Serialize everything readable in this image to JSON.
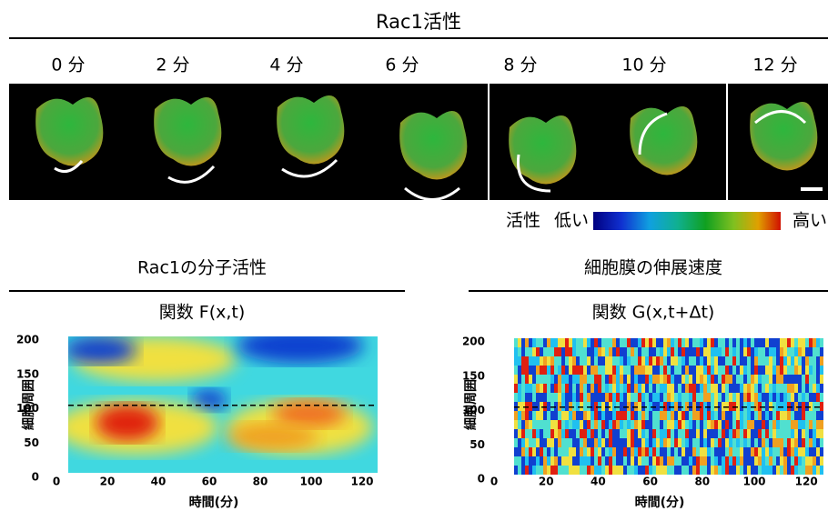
{
  "header": {
    "title": "Rac1活性",
    "time_labels": [
      "0 分",
      "2 分",
      "4 分",
      "6 分",
      "8 分",
      "10 分",
      "12 分"
    ]
  },
  "legend": {
    "label": "活性",
    "low": "低い",
    "high": "高い"
  },
  "panels": [
    {
      "title": "Rac1の分子活性",
      "function": "関数  F(x,t)",
      "y_label": "細胞周囲",
      "x_label": "時間(分)",
      "yticks": [
        0,
        50,
        100,
        150,
        200
      ],
      "xticks": [
        0,
        20,
        40,
        60,
        80,
        100,
        120
      ]
    },
    {
      "title": "細胞膜の伸展速度",
      "function": "関数  G(x,t+Δt)",
      "y_label": "細胞周囲",
      "x_label": "時間(分)",
      "yticks": [
        0,
        50,
        100,
        150,
        200
      ],
      "xticks": [
        0,
        20,
        40,
        60,
        80,
        100,
        120
      ]
    }
  ]
}
